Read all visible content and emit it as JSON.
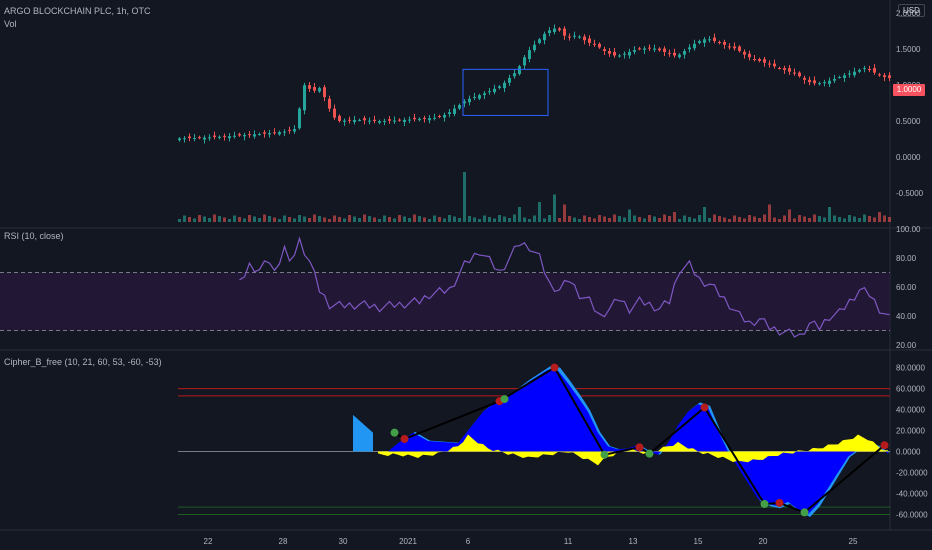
{
  "header": {
    "symbol": "ARGO BLOCKCHAIN PLC, 1h, OTC",
    "vol_label": "Vol",
    "currency": "USD",
    "last_price": "1.0000"
  },
  "colors": {
    "background": "#131722",
    "up": "#26a69a",
    "down": "#ef5350",
    "rsi_line": "#7e57c2",
    "rsi_band": "#2a1a3f",
    "wave_blue": "#0000ff",
    "wave_light": "#2196f3",
    "wave_yellow": "#ffff00",
    "wt_line": "#000000",
    "dot_sell": "#b71c1c",
    "dot_buy": "#43a047"
  },
  "chart_data": [
    {
      "type": "candlestick",
      "name": "price",
      "title": "ARGO BLOCKCHAIN PLC, 1h, OTC",
      "ylim": [
        -0.9,
        2.1
      ],
      "yticks": [
        2.0,
        1.5,
        1.0,
        0.5,
        0.0,
        -0.5
      ],
      "ytick_labels": [
        "2.0000",
        "1.5000",
        "1.0000",
        "0.5000",
        "0.0000",
        "-0.5000"
      ],
      "x_labels": [
        "22",
        "28",
        "30",
        "2021",
        "6",
        "11",
        "13",
        "15",
        "20",
        "25"
      ],
      "keyframes": [
        [
          0,
          0.26
        ],
        [
          5,
          0.27
        ],
        [
          10,
          0.29
        ],
        [
          14,
          0.31
        ],
        [
          18,
          0.33
        ],
        [
          22,
          0.36
        ],
        [
          24,
          0.4
        ],
        [
          25,
          0.95
        ],
        [
          26,
          1.05
        ],
        [
          27,
          0.85
        ],
        [
          28,
          1.0
        ],
        [
          29,
          0.92
        ],
        [
          30,
          0.75
        ],
        [
          31,
          0.6
        ],
        [
          32,
          0.5
        ],
        [
          36,
          0.52
        ],
        [
          40,
          0.5
        ],
        [
          44,
          0.51
        ],
        [
          48,
          0.53
        ],
        [
          52,
          0.55
        ],
        [
          54,
          0.6
        ],
        [
          58,
          0.8
        ],
        [
          62,
          0.9
        ],
        [
          65,
          1.0
        ],
        [
          68,
          1.2
        ],
        [
          70,
          1.45
        ],
        [
          72,
          1.6
        ],
        [
          74,
          1.75
        ],
        [
          76,
          1.8
        ],
        [
          78,
          1.65
        ],
        [
          80,
          1.7
        ],
        [
          82,
          1.6
        ],
        [
          84,
          1.55
        ],
        [
          86,
          1.45
        ],
        [
          88,
          1.4
        ],
        [
          90,
          1.45
        ],
        [
          92,
          1.5
        ],
        [
          95,
          1.52
        ],
        [
          98,
          1.45
        ],
        [
          100,
          1.4
        ],
        [
          102,
          1.5
        ],
        [
          104,
          1.6
        ],
        [
          106,
          1.65
        ],
        [
          108,
          1.6
        ],
        [
          110,
          1.55
        ],
        [
          112,
          1.5
        ],
        [
          114,
          1.4
        ],
        [
          116,
          1.35
        ],
        [
          118,
          1.3
        ],
        [
          120,
          1.25
        ],
        [
          124,
          1.15
        ],
        [
          126,
          1.05
        ],
        [
          128,
          1.02
        ],
        [
          130,
          1.05
        ],
        [
          132,
          1.1
        ],
        [
          134,
          1.15
        ],
        [
          136,
          1.2
        ],
        [
          138,
          1.25
        ],
        [
          140,
          1.15
        ],
        [
          142,
          1.1
        ]
      ],
      "volume_peaks": [
        [
          57,
          1.0
        ],
        [
          75,
          0.55
        ],
        [
          72,
          0.4
        ],
        [
          68,
          0.3
        ],
        [
          77,
          0.35
        ],
        [
          90,
          0.25
        ],
        [
          99,
          0.2
        ],
        [
          105,
          0.3
        ],
        [
          118,
          0.35
        ],
        [
          130,
          0.3
        ],
        [
          122,
          0.25
        ],
        [
          140,
          0.2
        ]
      ],
      "annotation_box": {
        "x1": 57,
        "x2": 74,
        "y_top": 1.22,
        "y_bottom": 0.58
      }
    },
    {
      "type": "line",
      "name": "RSI",
      "title": "RSI (10, close)",
      "ylim": [
        20,
        100
      ],
      "yticks": [
        100,
        80,
        60,
        40,
        20
      ],
      "ytick_labels": [
        "100.00",
        "80.00",
        "60.00",
        "40.00",
        "20.00"
      ],
      "band": [
        30,
        70
      ],
      "start_index": 12,
      "keyframes": [
        [
          12,
          62
        ],
        [
          14,
          75
        ],
        [
          16,
          72
        ],
        [
          18,
          78
        ],
        [
          19,
          70
        ],
        [
          21,
          88
        ],
        [
          22,
          75
        ],
        [
          24,
          92
        ],
        [
          26,
          78
        ],
        [
          28,
          58
        ],
        [
          30,
          48
        ],
        [
          32,
          47
        ],
        [
          36,
          48
        ],
        [
          40,
          46
        ],
        [
          44,
          48
        ],
        [
          48,
          50
        ],
        [
          50,
          55
        ],
        [
          54,
          58
        ],
        [
          57,
          75
        ],
        [
          60,
          85
        ],
        [
          62,
          78
        ],
        [
          64,
          70
        ],
        [
          66,
          80
        ],
        [
          68,
          90
        ],
        [
          70,
          88
        ],
        [
          72,
          80
        ],
        [
          74,
          62
        ],
        [
          76,
          58
        ],
        [
          78,
          65
        ],
        [
          80,
          55
        ],
        [
          82,
          50
        ],
        [
          84,
          40
        ],
        [
          86,
          45
        ],
        [
          88,
          52
        ],
        [
          90,
          45
        ],
        [
          92,
          50
        ],
        [
          94,
          48
        ],
        [
          96,
          45
        ],
        [
          98,
          50
        ],
        [
          100,
          72
        ],
        [
          102,
          75
        ],
        [
          104,
          65
        ],
        [
          106,
          62
        ],
        [
          108,
          55
        ],
        [
          110,
          48
        ],
        [
          112,
          40
        ],
        [
          114,
          35
        ],
        [
          116,
          38
        ],
        [
          118,
          32
        ],
        [
          120,
          30
        ],
        [
          122,
          28
        ],
        [
          124,
          26
        ],
        [
          126,
          35
        ],
        [
          128,
          32
        ],
        [
          130,
          40
        ],
        [
          132,
          42
        ],
        [
          134,
          50
        ],
        [
          136,
          58
        ],
        [
          138,
          55
        ],
        [
          140,
          45
        ],
        [
          142,
          38
        ]
      ]
    },
    {
      "type": "area",
      "name": "Cipher_B",
      "title": "Cipher_B_free (10, 21, 60, 53, -60, -53)",
      "ylim": [
        -70,
        92
      ],
      "yticks": [
        80,
        60,
        40,
        20,
        0,
        -20,
        -40,
        -60
      ],
      "ytick_labels": [
        "80.0000",
        "60.0000",
        "40.0000",
        "20.0000",
        "0.0000",
        "-20.0000",
        "-40.0000",
        "-60.0000"
      ],
      "levels": {
        "ob1": 60,
        "ob2": 53,
        "os1": -53,
        "os2": -60
      },
      "wt1_keyframes": [
        [
          40,
          0
        ],
        [
          42,
          0
        ],
        [
          44,
          8
        ],
        [
          47,
          18
        ],
        [
          50,
          10
        ],
        [
          56,
          8
        ],
        [
          58,
          20
        ],
        [
          61,
          38
        ],
        [
          63,
          45
        ],
        [
          66,
          52
        ],
        [
          70,
          66
        ],
        [
          74,
          78
        ],
        [
          76,
          77
        ],
        [
          78,
          65
        ],
        [
          80,
          52
        ],
        [
          82,
          38
        ],
        [
          84,
          18
        ],
        [
          86,
          5
        ],
        [
          88,
          2
        ],
        [
          90,
          3
        ],
        [
          92,
          6
        ],
        [
          94,
          0
        ],
        [
          96,
          -3
        ],
        [
          98,
          8
        ],
        [
          100,
          25
        ],
        [
          102,
          38
        ],
        [
          104,
          45
        ],
        [
          106,
          42
        ],
        [
          108,
          20
        ],
        [
          110,
          0
        ],
        [
          112,
          -15
        ],
        [
          114,
          -30
        ],
        [
          116,
          -45
        ],
        [
          118,
          -50
        ],
        [
          120,
          -52
        ],
        [
          122,
          -48
        ],
        [
          124,
          -55
        ],
        [
          126,
          -60
        ],
        [
          128,
          -50
        ],
        [
          130,
          -35
        ],
        [
          132,
          -20
        ],
        [
          134,
          -5
        ],
        [
          136,
          2
        ],
        [
          138,
          8
        ],
        [
          140,
          5
        ],
        [
          142,
          -2
        ]
      ],
      "vwap_keyframes": [
        [
          44,
          -3
        ],
        [
          48,
          -5
        ],
        [
          52,
          -2
        ],
        [
          56,
          5
        ],
        [
          58,
          15
        ],
        [
          62,
          3
        ],
        [
          66,
          -2
        ],
        [
          70,
          -6
        ],
        [
          74,
          -3
        ],
        [
          78,
          0
        ],
        [
          82,
          -8
        ],
        [
          84,
          -12
        ],
        [
          86,
          -5
        ],
        [
          90,
          2
        ],
        [
          94,
          -2
        ],
        [
          98,
          5
        ],
        [
          100,
          8
        ],
        [
          104,
          0
        ],
        [
          108,
          -5
        ],
        [
          112,
          -10
        ],
        [
          116,
          -8
        ],
        [
          120,
          -3
        ],
        [
          124,
          0
        ],
        [
          128,
          3
        ],
        [
          132,
          8
        ],
        [
          136,
          15
        ],
        [
          138,
          12
        ],
        [
          140,
          5
        ],
        [
          142,
          0
        ]
      ],
      "cross_dots": [
        {
          "x": 43,
          "y": 18,
          "kind": "buy"
        },
        {
          "x": 45,
          "y": 12,
          "kind": "sell"
        },
        {
          "x": 64,
          "y": 48,
          "kind": "sell"
        },
        {
          "x": 65,
          "y": 50,
          "kind": "buy"
        },
        {
          "x": 75,
          "y": 80,
          "kind": "sell"
        },
        {
          "x": 85,
          "y": -3,
          "kind": "buy"
        },
        {
          "x": 92,
          "y": 4,
          "kind": "sell"
        },
        {
          "x": 94,
          "y": -2,
          "kind": "buy"
        },
        {
          "x": 105,
          "y": 42,
          "kind": "sell"
        },
        {
          "x": 117,
          "y": -50,
          "kind": "buy"
        },
        {
          "x": 120,
          "y": -49,
          "kind": "sell"
        },
        {
          "x": 125,
          "y": -58,
          "kind": "buy"
        },
        {
          "x": 141,
          "y": 6,
          "kind": "sell"
        }
      ],
      "wt_line_points": [
        [
          43,
          18
        ],
        [
          45,
          12
        ],
        [
          64,
          48
        ],
        [
          75,
          80
        ],
        [
          85,
          -3
        ],
        [
          92,
          4
        ],
        [
          94,
          -2
        ],
        [
          105,
          42
        ],
        [
          117,
          -50
        ],
        [
          120,
          -49
        ],
        [
          125,
          -58
        ],
        [
          141,
          6
        ]
      ]
    }
  ]
}
